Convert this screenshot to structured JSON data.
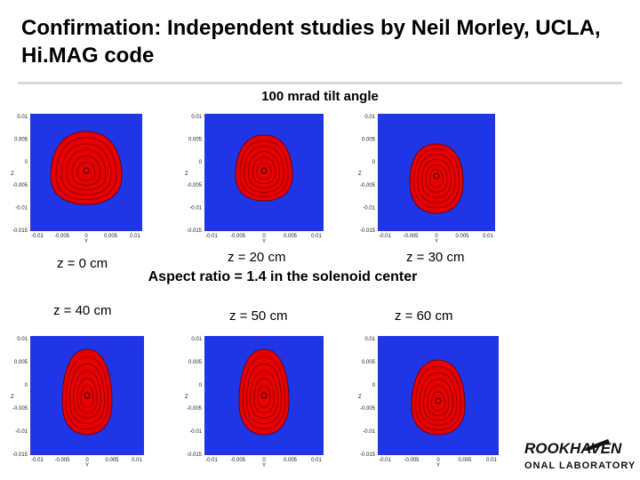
{
  "slide": {
    "title": "Confirmation:  Independent studies by Neil Morley, UCLA, Hi.MAG code",
    "subtitle": "100 mrad tilt angle",
    "aspect_note": "Aspect ratio = 1.4 in the solenoid center"
  },
  "panels": [
    {
      "caption": "z = 0 cm",
      "shape": "circle",
      "yticks": [
        "0.01",
        "0.005",
        "0",
        "-0.005",
        "-0.01",
        "-0.015"
      ],
      "xticks": [
        "-0.01",
        "-0.005",
        "0",
        "0.005",
        "0.01"
      ],
      "xlabel": "Y",
      "ylabel": "Z"
    },
    {
      "caption": "z = 20 cm",
      "shape": "oval",
      "yticks": [
        "0.01",
        "0.005",
        "0",
        "-0.005",
        "-0.01",
        "-0.015"
      ],
      "xticks": [
        "-0.01",
        "-0.005",
        "0",
        "0.005",
        "0.01"
      ],
      "xlabel": "Y",
      "ylabel": "Z"
    },
    {
      "caption": "z = 30 cm",
      "shape": "egg",
      "yticks": [
        "0.01",
        "0.005",
        "0",
        "-0.005",
        "-0.01",
        "-0.015"
      ],
      "xticks": [
        "-0.01",
        "-0.005",
        "0",
        "0.005",
        "0.01"
      ],
      "xlabel": "Y",
      "ylabel": "Z"
    },
    {
      "caption": "z = 40 cm",
      "shape": "tall",
      "yticks": [
        "0.01",
        "0.005",
        "0",
        "-0.005",
        "-0.01",
        "-0.015"
      ],
      "xticks": [
        "-0.01",
        "-0.005",
        "0",
        "0.005",
        "0.01"
      ],
      "xlabel": "Y",
      "ylabel": "Z"
    },
    {
      "caption": "z = 50 cm",
      "shape": "tall",
      "yticks": [
        "0.01",
        "0.005",
        "0",
        "-0.005",
        "-0.01",
        "-0.015"
      ],
      "xticks": [
        "-0.01",
        "-0.005",
        "0",
        "0.005",
        "0.01"
      ],
      "xlabel": "Y",
      "ylabel": "Z"
    },
    {
      "caption": "z = 60 cm",
      "shape": "drop",
      "yticks": [
        "0.01",
        "0.005",
        "0",
        "-0.005",
        "-0.01",
        "-0.015"
      ],
      "xticks": [
        "-0.01",
        "-0.005",
        "0",
        "0.005",
        "0.01"
      ],
      "xlabel": "Y",
      "ylabel": "Z"
    }
  ],
  "logo": {
    "line1": "ROOKHAVEN",
    "line2": "ONAL LABORATORY"
  },
  "colors": {
    "plot_bg": "#1f35e6",
    "contour": "#e60000",
    "contour_line": "#600000"
  }
}
